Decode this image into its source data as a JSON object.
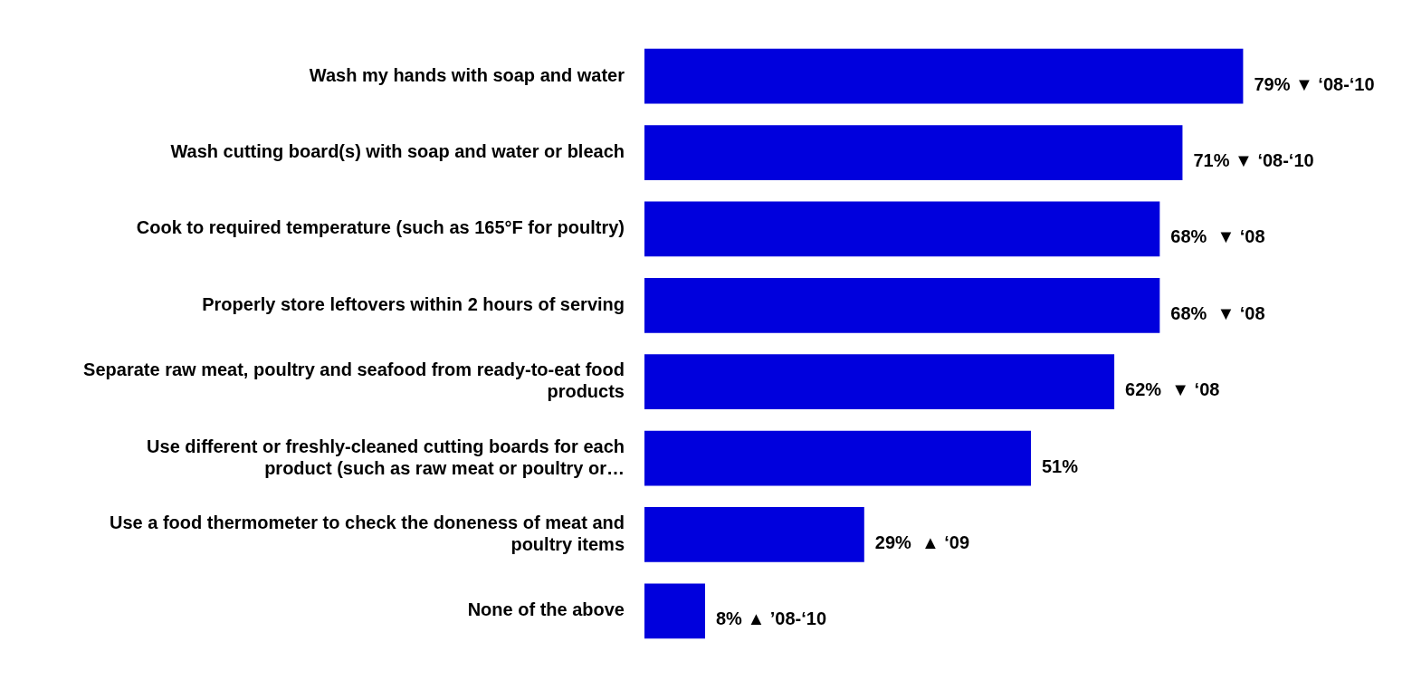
{
  "chart_data": {
    "type": "bar",
    "orientation": "horizontal",
    "categories": [
      "Wash my hands with soap and water",
      "Wash cutting board(s) with soap and water or bleach",
      "Cook to required temperature (such as 165°F for poultry)",
      "Properly store leftovers within 2 hours of serving",
      "Separate raw meat, poultry and seafood from ready-to-eat food products",
      "Use different or freshly-cleaned cutting boards for each product (such as raw meat or poultry or…",
      "Use a food thermometer to check the doneness of meat and poultry items",
      "None of the above"
    ],
    "values": [
      79,
      71,
      68,
      68,
      62,
      51,
      29,
      8
    ],
    "value_labels": [
      "79% ▼ ‘08-‘10",
      "71% ▼ ‘08-‘10",
      "68%  ▼ ‘08",
      "68%  ▼ ‘08",
      "62%  ▼ ‘08",
      "51%",
      "29%  ▲ ‘09",
      "8% ▲ ’08-‘10"
    ],
    "color": "#0000dd",
    "grid": false,
    "legend": false
  }
}
